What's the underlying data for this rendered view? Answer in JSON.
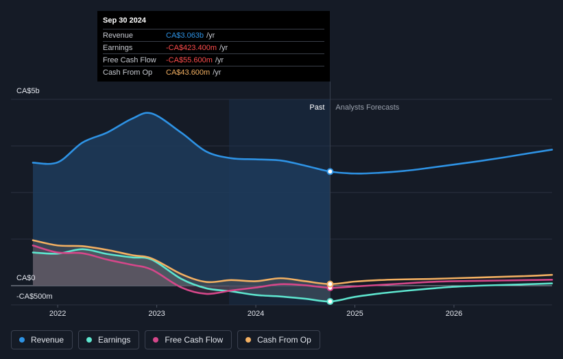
{
  "tooltip": {
    "date": "Sep 30 2024",
    "rows": [
      {
        "label": "Revenue",
        "value": "CA$3.063b",
        "unit": "/yr",
        "color": "#2e93e5"
      },
      {
        "label": "Earnings",
        "value": "-CA$423.400m",
        "unit": "/yr",
        "color": "#ff4d4d"
      },
      {
        "label": "Free Cash Flow",
        "value": "-CA$55.600m",
        "unit": "/yr",
        "color": "#ff4d4d"
      },
      {
        "label": "Cash From Op",
        "value": "CA$43.600m",
        "unit": "/yr",
        "color": "#f3b062"
      }
    ]
  },
  "labels": {
    "past": "Past",
    "forecast": "Analysts Forecasts"
  },
  "legend": [
    {
      "label": "Revenue",
      "color": "#2e93e5"
    },
    {
      "label": "Earnings",
      "color": "#5ee6cf"
    },
    {
      "label": "Free Cash Flow",
      "color": "#d6478a"
    },
    {
      "label": "Cash From Op",
      "color": "#f3b062"
    }
  ],
  "chart_data": {
    "type": "line",
    "ytick_labels": [
      "CA$5b",
      "CA$0",
      "-CA$500m"
    ],
    "yticks": [
      5000,
      0,
      -500
    ],
    "ylim": [
      -500,
      5000
    ],
    "xtick_labels": [
      "2022",
      "2023",
      "2024",
      "2025",
      "2026"
    ],
    "xticks": [
      2022,
      2023,
      2024,
      2025,
      2026
    ],
    "xlim": [
      2021.6,
      2026.99
    ],
    "past_end": 2024.75,
    "series": [
      {
        "name": "Revenue",
        "color": "#2e93e5",
        "x": [
          2021.75,
          2022.0,
          2022.25,
          2022.5,
          2022.75,
          2022.95,
          2023.25,
          2023.5,
          2023.75,
          2024.0,
          2024.25,
          2024.5,
          2024.75,
          2025.0,
          2025.25,
          2025.5,
          2025.75,
          2026.0,
          2026.25,
          2026.5,
          2026.75,
          2026.99
        ],
        "values": [
          3300,
          3310,
          3840,
          4110,
          4480,
          4620,
          4100,
          3600,
          3420,
          3390,
          3360,
          3220,
          3063,
          3010,
          3030,
          3080,
          3160,
          3250,
          3340,
          3440,
          3550,
          3650
        ]
      },
      {
        "name": "Earnings",
        "color": "#5ee6cf",
        "x": [
          2021.75,
          2022.0,
          2022.25,
          2022.5,
          2022.75,
          2022.95,
          2023.25,
          2023.5,
          2023.75,
          2024.0,
          2024.25,
          2024.5,
          2024.75,
          2025.0,
          2025.25,
          2025.5,
          2025.75,
          2026.0,
          2026.25,
          2026.5,
          2026.75,
          2026.99
        ],
        "values": [
          890,
          860,
          980,
          850,
          760,
          700,
          180,
          -70,
          -150,
          -250,
          -290,
          -350,
          -423,
          -300,
          -210,
          -140,
          -80,
          -30,
          0,
          20,
          40,
          60
        ]
      },
      {
        "name": "Free Cash Flow",
        "color": "#d6478a",
        "x": [
          2021.75,
          2022.0,
          2022.25,
          2022.5,
          2022.75,
          2022.95,
          2023.25,
          2023.5,
          2023.75,
          2024.0,
          2024.25,
          2024.5,
          2024.75,
          2025.0,
          2025.25,
          2025.5,
          2025.75,
          2026.0,
          2026.25,
          2026.5,
          2026.75,
          2026.99
        ],
        "values": [
          1080,
          890,
          870,
          700,
          560,
          430,
          -50,
          -220,
          -130,
          -50,
          40,
          10,
          -56,
          -20,
          20,
          60,
          100,
          120,
          130,
          140,
          150,
          160
        ]
      },
      {
        "name": "Cash From Op",
        "color": "#f3b062",
        "x": [
          2021.75,
          2022.0,
          2022.25,
          2022.5,
          2022.75,
          2022.95,
          2023.25,
          2023.5,
          2023.75,
          2024.0,
          2024.25,
          2024.5,
          2024.75,
          2025.0,
          2025.25,
          2025.5,
          2025.75,
          2026.0,
          2026.25,
          2026.5,
          2026.75,
          2026.99
        ],
        "values": [
          1220,
          1080,
          1060,
          960,
          820,
          730,
          310,
          100,
          150,
          120,
          200,
          120,
          44,
          110,
          150,
          170,
          180,
          200,
          220,
          240,
          260,
          290
        ]
      }
    ]
  }
}
